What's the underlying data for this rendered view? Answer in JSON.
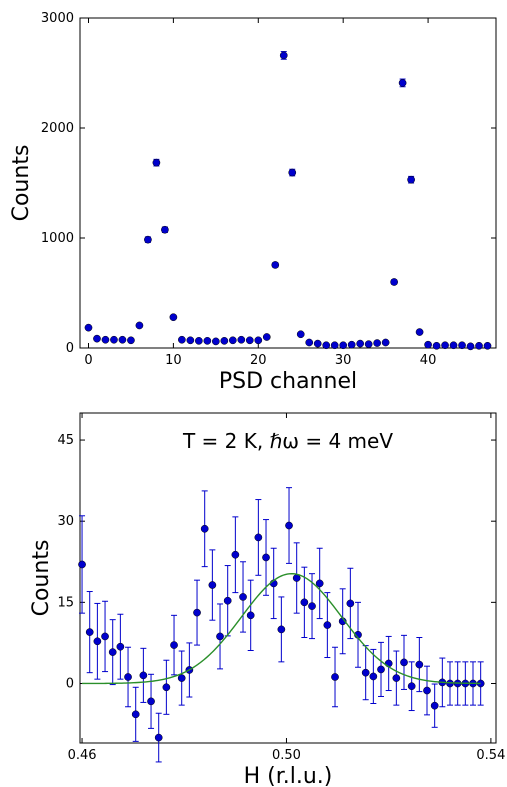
{
  "colors": {
    "marker": "#0000cc",
    "fit": "#2a8f2a",
    "axes": "#000000"
  },
  "chart_data": [
    {
      "type": "scatter",
      "title": "",
      "xlabel": "PSD channel",
      "ylabel": "Counts",
      "xlim": [
        -1,
        48
      ],
      "ylim": [
        0,
        3000
      ],
      "xticks": [
        0,
        10,
        20,
        30,
        40
      ],
      "xtick_labels": [
        "0",
        "10",
        "20",
        "30",
        "40"
      ],
      "yticks": [
        0,
        1000,
        2000,
        3000
      ],
      "ytick_labels": [
        "0",
        "1000",
        "2000",
        "3000"
      ],
      "grid": false,
      "series": [
        {
          "x": [
            0,
            1,
            2,
            3,
            4,
            5,
            6,
            7,
            8,
            9,
            10,
            11,
            12,
            13,
            14,
            15,
            16,
            17,
            18,
            19,
            20,
            21,
            22,
            23,
            24,
            25,
            26,
            27,
            28,
            29,
            30,
            31,
            32,
            33,
            34,
            35,
            36,
            37,
            38,
            39,
            40,
            41,
            42,
            43,
            44,
            45,
            46,
            47
          ],
          "y": [
            185,
            85,
            75,
            75,
            75,
            70,
            205,
            985,
            1685,
            1075,
            280,
            75,
            70,
            65,
            65,
            60,
            65,
            70,
            75,
            70,
            70,
            100,
            755,
            2660,
            1595,
            125,
            50,
            40,
            25,
            25,
            25,
            30,
            40,
            35,
            45,
            50,
            600,
            2410,
            1530,
            145,
            30,
            20,
            25,
            25,
            25,
            15,
            20,
            20
          ],
          "yerr": [
            15,
            10,
            10,
            10,
            10,
            10,
            15,
            25,
            30,
            25,
            15,
            10,
            10,
            10,
            10,
            10,
            10,
            10,
            10,
            10,
            10,
            10,
            20,
            35,
            30,
            10,
            8,
            8,
            6,
            6,
            6,
            6,
            8,
            6,
            8,
            8,
            20,
            35,
            30,
            10,
            6,
            5,
            6,
            6,
            6,
            5,
            5,
            5
          ]
        }
      ]
    },
    {
      "type": "scatter",
      "title": "",
      "annotation": "T = 2 K, ℏω = 4 meV",
      "xlabel": "H (r.l.u.)",
      "ylabel": "Counts",
      "xlim": [
        0.4596,
        0.541
      ],
      "ylim": [
        -11,
        50
      ],
      "xticks": [
        0.46,
        0.5,
        0.54
      ],
      "xtick_labels": [
        "0.46",
        "0.50",
        "0.54"
      ],
      "yticks": [
        0,
        15,
        30,
        45
      ],
      "ytick_labels": [
        "0",
        "15",
        "30",
        "45"
      ],
      "grid": false,
      "series": [
        {
          "x": [
            0.46,
            0.4615,
            0.463,
            0.4645,
            0.466,
            0.4675,
            0.469,
            0.4705,
            0.472,
            0.4735,
            0.475,
            0.4765,
            0.478,
            0.4795,
            0.481,
            0.4825,
            0.484,
            0.4855,
            0.487,
            0.4885,
            0.49,
            0.4915,
            0.493,
            0.4945,
            0.496,
            0.4975,
            0.499,
            0.5005,
            0.502,
            0.5035,
            0.505,
            0.5065,
            0.508,
            0.5095,
            0.511,
            0.5125,
            0.514,
            0.5155,
            0.517,
            0.5185,
            0.52,
            0.5215,
            0.523,
            0.5245,
            0.526,
            0.5275,
            0.529,
            0.5305,
            0.532,
            0.5335,
            0.535,
            0.5365,
            0.538
          ],
          "y": [
            22,
            9.5,
            7.8,
            8.7,
            5.8,
            6.8,
            1.2,
            -5.7,
            1.5,
            -3.3,
            -10,
            -0.7,
            7.1,
            1.0,
            2.5,
            13.1,
            28.6,
            18.2,
            8.7,
            15.3,
            23.8,
            16.0,
            12.6,
            27.0,
            23.3,
            18.5,
            10.0,
            29.2,
            19.5,
            15.0,
            14.3,
            18.5,
            10.8,
            1.2,
            11.5,
            14.8,
            9.0,
            2.0,
            1.3,
            2.6,
            3.7,
            1.0,
            3.9,
            -0.5,
            3.5,
            -1.3,
            -4.1,
            0.2,
            0,
            0,
            0,
            0,
            0
          ],
          "yerr": [
            9,
            7.5,
            7,
            6.5,
            6,
            6,
            5.5,
            5,
            5,
            5,
            4.5,
            5,
            5.5,
            5,
            5,
            6,
            7,
            6.5,
            6,
            6.5,
            7,
            6.5,
            6.5,
            7,
            7,
            6.5,
            6,
            7,
            6.5,
            6.5,
            6,
            6.5,
            6,
            5.5,
            6,
            6.5,
            6,
            5,
            5,
            5,
            5,
            5,
            5,
            4.5,
            5,
            4.5,
            4,
            4.5,
            4,
            4,
            4,
            4,
            4
          ]
        },
        {
          "name": "",
          "line": true,
          "model": "gaussian",
          "center": 0.501,
          "sigma": 0.0098,
          "amplitude": 20.3,
          "baseline": 0,
          "x_range": [
            0.46,
            0.538
          ]
        }
      ]
    }
  ]
}
